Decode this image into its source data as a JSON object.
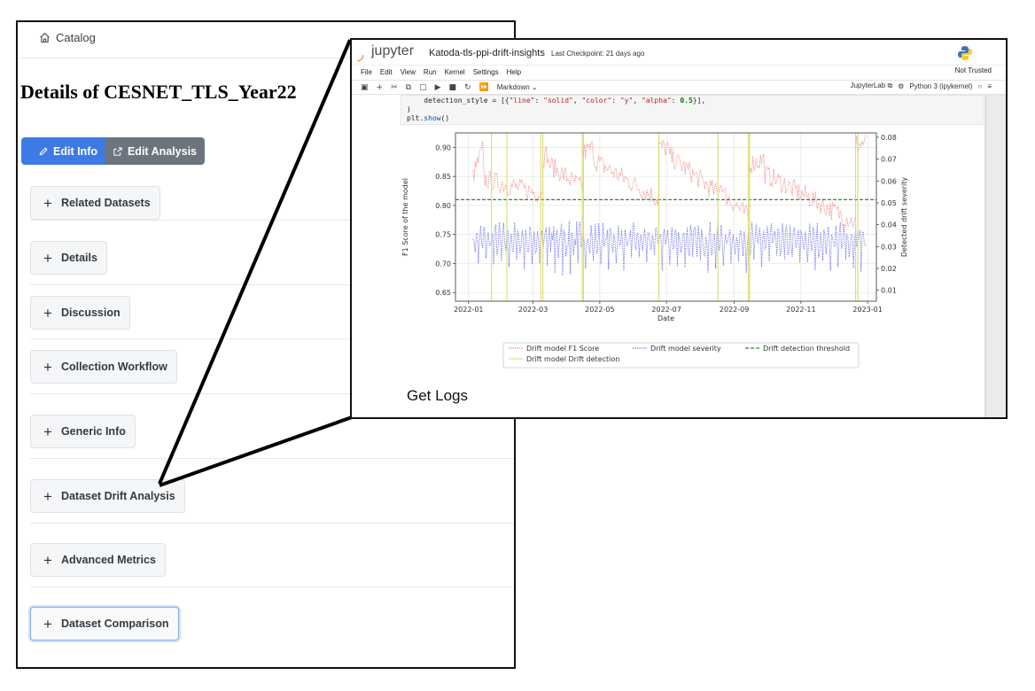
{
  "catalog": {
    "breadcrumb": "Catalog",
    "title": "Details of CESNET_TLS_Year22",
    "buttons": {
      "edit_info": "Edit Info",
      "edit_analysis": "Edit Analysis"
    },
    "sections": [
      "Related Datasets",
      "Details",
      "Discussion",
      "Collection Workflow",
      "Generic Info",
      "Dataset Drift Analysis",
      "Advanced Metrics",
      "Dataset Comparison"
    ],
    "accent_color": "#3d7ae6",
    "secondary_color": "#6c757d"
  },
  "jupyter": {
    "logo_text": "jupyter",
    "notebook_name": "Katoda-tls-ppi-drift-insights",
    "checkpoint": "Last Checkpoint: 21 days ago",
    "menu": [
      "File",
      "Edit",
      "View",
      "Run",
      "Kernel",
      "Settings",
      "Help"
    ],
    "trust_status": "Not Trusted",
    "cell_type": "Markdown",
    "jupyterlab_link": "JupyterLab",
    "kernel": "Python 3 (ipykernel)",
    "code_lines": {
      "line1_prefix": "    detection_style = [{",
      "line1_k1": "\"line\"",
      "line1_v1": "\"solid\"",
      "line1_k2": "\"color\"",
      "line1_v2": "\"y\"",
      "line1_k3": "\"alpha\"",
      "line1_v3": "0.5",
      "line1_suffix": "}],",
      "line2": ")",
      "line3_obj": "plt.",
      "line3_fn": "show",
      "line3_end": "()"
    },
    "heading": "Get Logs"
  },
  "chart_data": {
    "type": "line",
    "xlabel": "Date",
    "ylabel": "F1 Score of the model",
    "ylabel_right": "Detected drift severity",
    "x_ticks": [
      "2022-01",
      "2022-03",
      "2022-05",
      "2022-07",
      "2022-09",
      "2022-11",
      "2023-01"
    ],
    "y_ticks": [
      "0.65",
      "0.70",
      "0.75",
      "0.80",
      "0.85",
      "0.90"
    ],
    "y_ticks_right": [
      "0.01",
      "0.02",
      "0.03",
      "0.04",
      "0.05",
      "0.06",
      "0.07",
      "0.08"
    ],
    "ylim": [
      0.635,
      0.925
    ],
    "ylim_right": [
      0.005,
      0.082
    ],
    "grid": true,
    "legend_position": "bottom",
    "threshold": 0.81,
    "series": [
      {
        "name": "Drift model F1 Score",
        "color": "#f08080",
        "style": "dotted",
        "axis": "left"
      },
      {
        "name": "Drift model severity",
        "color": "#6b6bf0",
        "style": "dotted",
        "axis": "right"
      },
      {
        "name": "Drift detection threshold",
        "color": "#2e8b2e",
        "style": "dashed",
        "axis": "left"
      },
      {
        "name": "Drift model Drift detection",
        "color": "#d8d860",
        "style": "solid",
        "axis": "left"
      }
    ],
    "drift_detection_dates": [
      "2022-01-22",
      "2022-02-05",
      "2022-03-08",
      "2022-03-10",
      "2022-04-15",
      "2022-04-16",
      "2022-06-24",
      "2022-08-17",
      "2022-09-14",
      "2022-09-15",
      "2022-12-21",
      "2022-12-23"
    ],
    "f1_segments": [
      {
        "start": "2022-01-05",
        "end": "2022-03-09",
        "from": 0.85,
        "to": 0.82,
        "peak": 0.9
      },
      {
        "start": "2022-03-09",
        "end": "2022-04-15",
        "from": 0.88,
        "to": 0.83,
        "peak": 0.89
      },
      {
        "start": "2022-04-15",
        "end": "2022-06-24",
        "from": 0.89,
        "to": 0.81,
        "peak": 0.9
      },
      {
        "start": "2022-06-24",
        "end": "2022-08-17",
        "from": 0.9,
        "to": 0.82,
        "peak": 0.9
      },
      {
        "start": "2022-08-17",
        "end": "2022-09-14",
        "from": 0.83,
        "to": 0.78,
        "peak": 0.84
      },
      {
        "start": "2022-09-14",
        "end": "2022-12-21",
        "from": 0.87,
        "to": 0.77,
        "peak": 0.88
      },
      {
        "start": "2022-12-21",
        "end": "2022-12-30",
        "from": 0.9,
        "to": 0.91,
        "peak": 0.91
      }
    ],
    "severity_range": [
      0.013,
      0.045
    ]
  }
}
